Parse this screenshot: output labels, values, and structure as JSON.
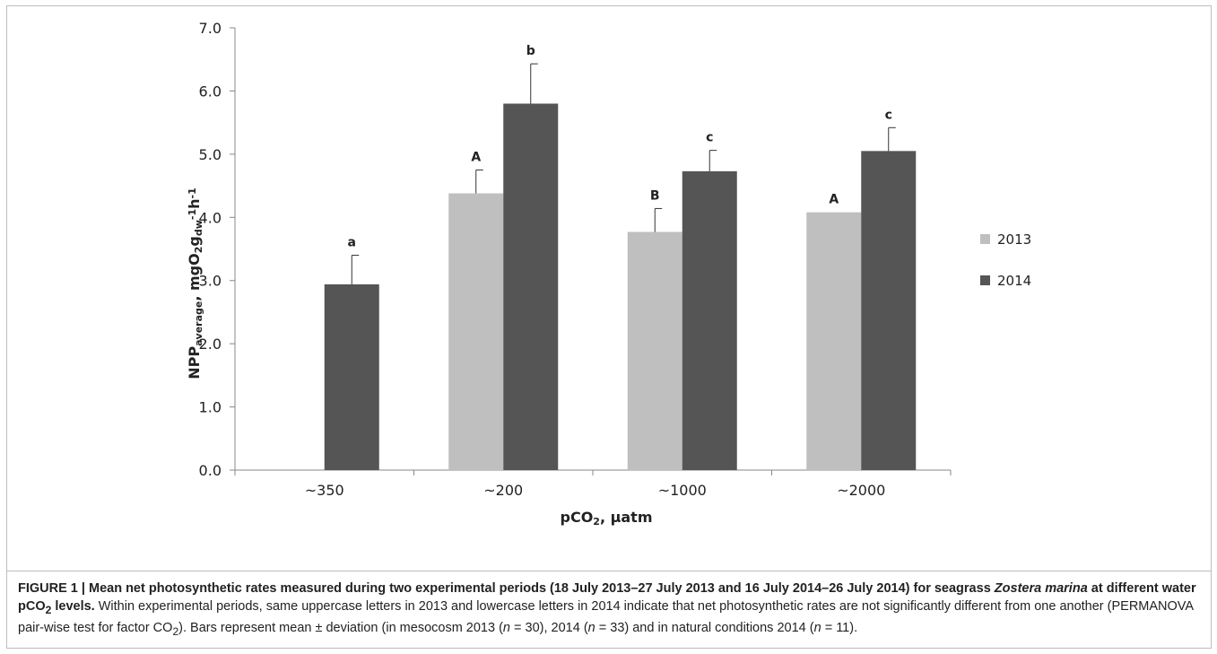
{
  "chart_data": {
    "type": "bar",
    "categories": [
      "~350",
      "~200",
      "~1000",
      "~2000"
    ],
    "series": [
      {
        "name": "2013",
        "color": "#bfbfbf",
        "values": [
          null,
          4.38,
          3.77,
          4.08
        ],
        "errors": [
          null,
          0.37,
          0.37,
          null
        ],
        "letters": [
          null,
          "A",
          "B",
          "A"
        ]
      },
      {
        "name": "2014",
        "color": "#555555",
        "values": [
          2.94,
          5.8,
          4.73,
          5.05
        ],
        "errors": [
          0.46,
          0.63,
          0.33,
          0.37
        ],
        "letters": [
          "a",
          "b",
          "c",
          "c"
        ]
      }
    ],
    "ylim": [
      0,
      7
    ],
    "yticks": [
      "0.0",
      "1.0",
      "2.0",
      "3.0",
      "4.0",
      "5.0",
      "6.0",
      "7.0"
    ],
    "xlabel_main": "pCO",
    "xlabel_sub": "2",
    "xlabel_rest": ",  µatm",
    "ylabel_parts": {
      "a": "NPP",
      "b": "average",
      "c": ", mgO",
      "d": "2",
      "e": "g",
      "f": "dw",
      "g": "-1",
      "h": "h",
      "i": "-1"
    },
    "legend_position": "right",
    "grid": false
  },
  "caption": {
    "bold_1": "FIGURE 1 | Mean net photosynthetic rates measured during two experimental periods (18 July 2013–27 July 2013 and 16 July 2014–26 July 2014) for seagrass ",
    "bold_italic": "Zostera marina",
    "bold_2": " at different water pCO",
    "bold_sub": "2",
    "bold_3": " levels.",
    "text_1": " Within experimental periods, same uppercase letters in 2013 and lowercase letters in 2014 indicate that net photosynthetic rates are not significantly different from one another (PERMANOVA pair-wise test for factor CO",
    "text_sub": "2",
    "text_2": "). Bars represent mean ± deviation (in mesocosm 2013 (",
    "n1": "n",
    "text_3": " = 30), 2014 (",
    "n2": "n",
    "text_4": " = 33) and in natural conditions 2014 (",
    "n3": "n",
    "text_5": " = 11)."
  }
}
